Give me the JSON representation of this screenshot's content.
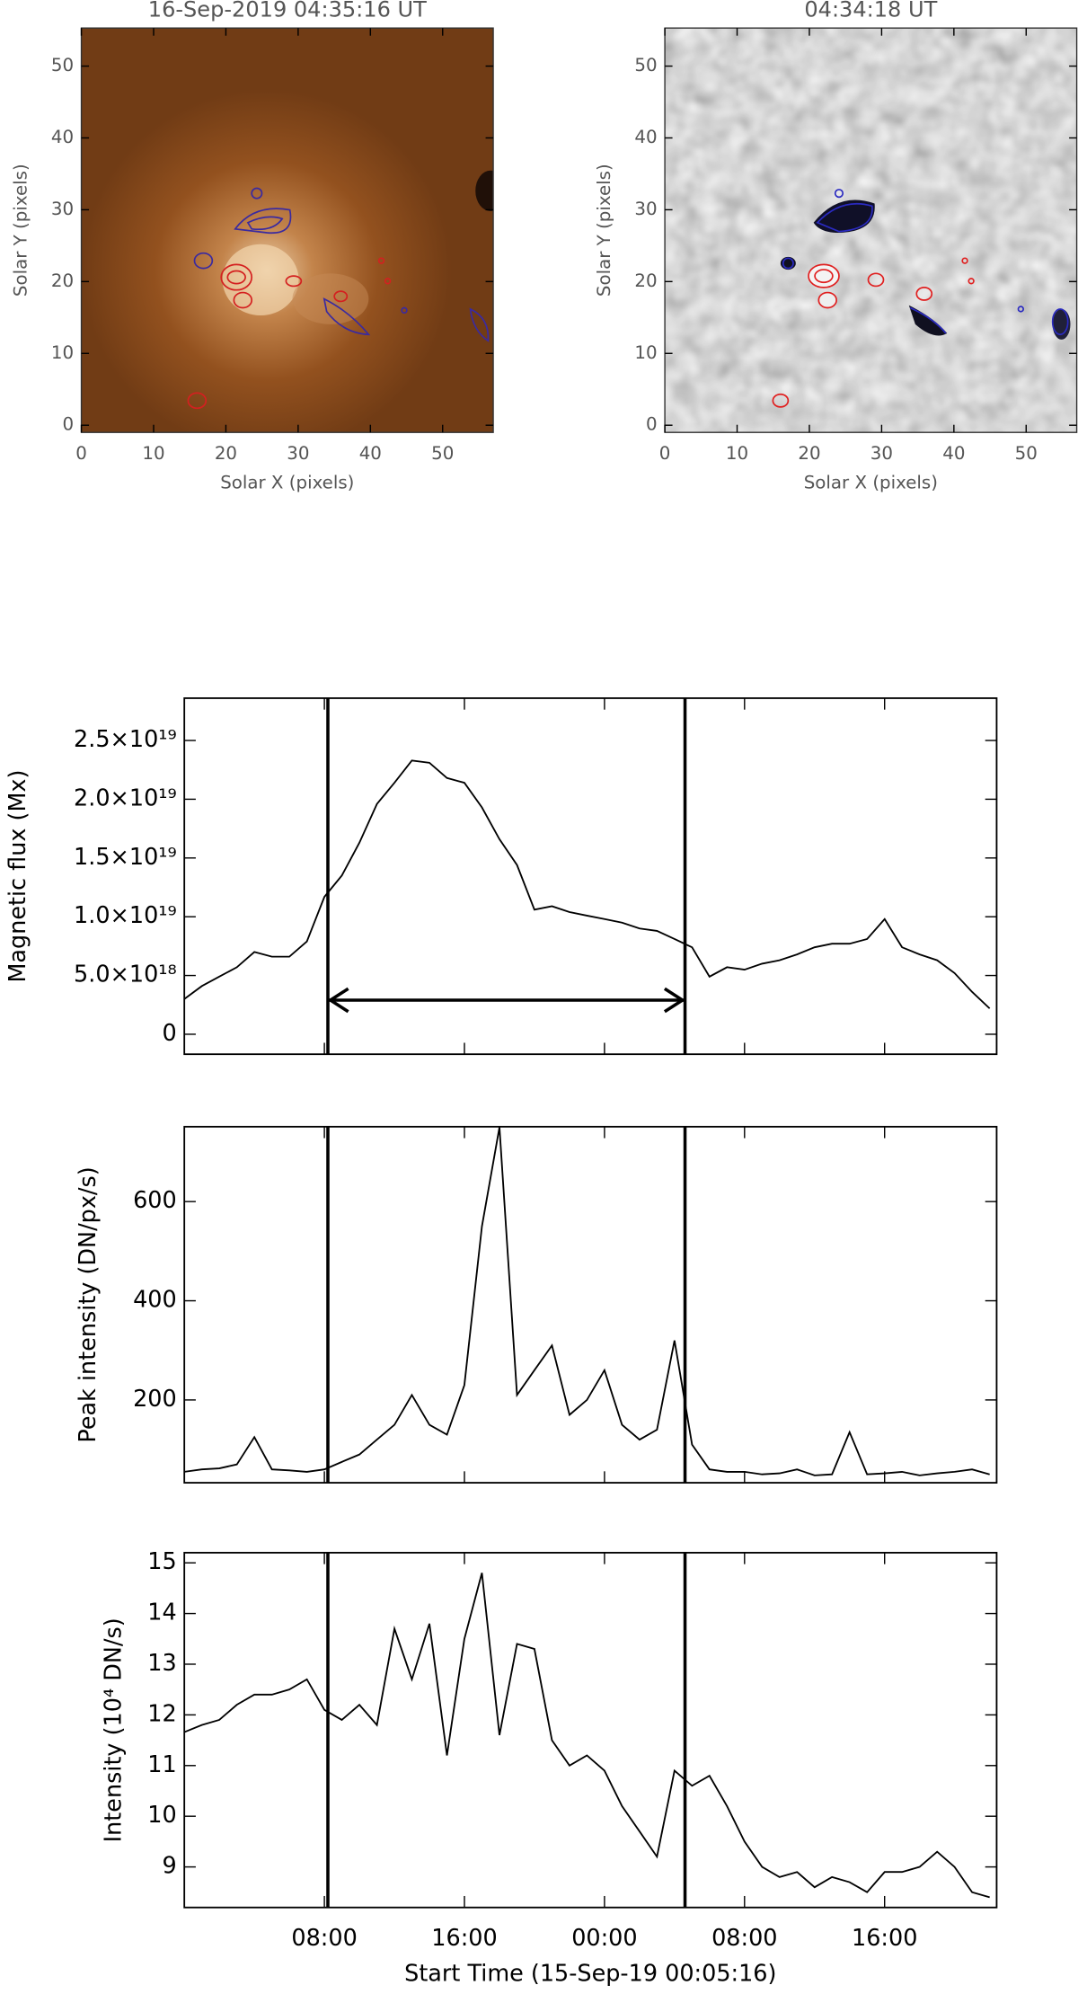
{
  "chart_data": [
    {
      "type": "image",
      "title": "16-Sep-2019 04:35:16 UT",
      "xlabel": "Solar X (pixels)",
      "ylabel": "Solar Y (pixels)",
      "xlim": [
        0,
        57
      ],
      "ylim": [
        -1,
        55.3
      ],
      "xticks": [
        0,
        10,
        20,
        30,
        40,
        50
      ],
      "yticks": [
        0,
        10,
        20,
        30,
        40,
        50
      ],
      "colormap": "brown"
    },
    {
      "type": "image",
      "title": "04:34:18 UT",
      "xlabel": "Solar X (pixels)",
      "ylabel": "Solar Y (pixels)",
      "xlim": [
        0,
        57
      ],
      "ylim": [
        -1,
        55.3
      ],
      "xticks": [
        0,
        10,
        20,
        30,
        40,
        50
      ],
      "yticks": [
        0,
        10,
        20,
        30,
        40,
        50
      ],
      "colormap": "gray"
    },
    {
      "type": "line",
      "ylabel": "Magnetic flux (Mx)",
      "color": "#000000",
      "x": [
        0,
        1,
        2,
        3,
        4,
        5,
        6,
        7,
        8,
        9,
        10,
        11,
        12,
        13,
        14,
        15,
        16,
        17,
        18,
        19,
        20,
        21,
        22,
        23,
        24,
        25,
        26,
        27,
        28,
        29,
        30,
        31,
        32,
        33,
        34,
        35,
        36,
        37,
        38,
        39,
        40,
        41,
        42,
        43,
        44,
        45,
        46
      ],
      "values": [
        3e+18,
        4.1e+18,
        4.9e+18,
        5.7e+18,
        7e+18,
        6.6e+18,
        6.6e+18,
        7.9e+18,
        1.17e+19,
        1.35e+19,
        1.63e+19,
        1.96e+19,
        2.14e+19,
        2.33e+19,
        2.31e+19,
        2.18e+19,
        2.14e+19,
        1.93e+19,
        1.66e+19,
        1.44e+19,
        1.06e+19,
        1.09e+19,
        1.04e+19,
        1.01e+19,
        9.8e+18,
        9.5e+18,
        9e+18,
        8.8e+18,
        8.1e+18,
        7.4e+18,
        4.9e+18,
        5.7e+18,
        5.5e+18,
        6e+18,
        6.3e+18,
        6.8e+18,
        7.4e+18,
        7.7e+18,
        7.7e+18,
        8.1e+18,
        9.8e+18,
        7.4e+18,
        6.8e+18,
        6.3e+18,
        5.2e+18,
        3.6e+18,
        2.2e+18
      ],
      "xlim": [
        0,
        46.4
      ],
      "ylim": [
        -1.7e+18,
        2.86e+19
      ],
      "yticks": [
        0,
        {
          "value": 5e+18,
          "label": "5.0×10¹⁸"
        },
        {
          "value": 1e+19,
          "label": "1.0×10¹⁹"
        },
        {
          "value": 1.5e+19,
          "label": "1.5×10¹⁹"
        },
        {
          "value": 2e+19,
          "label": "2.0×10¹⁹"
        },
        {
          "value": 2.5e+19,
          "label": "2.5×10¹⁹"
        }
      ],
      "vlines": [
        8.2,
        28.6
      ],
      "arrow": {
        "x": [
          8.2,
          28.6
        ],
        "y": 2.9e+18
      }
    },
    {
      "type": "line",
      "ylabel": "Peak intensity (DN/px/s)",
      "color": "#000000",
      "x": [
        0,
        1,
        2,
        3,
        4,
        5,
        6,
        7,
        8,
        9,
        10,
        11,
        12,
        13,
        14,
        15,
        16,
        17,
        18,
        19,
        20,
        21,
        22,
        23,
        24,
        25,
        26,
        27,
        28,
        29,
        30,
        31,
        32,
        33,
        34,
        35,
        36,
        37,
        38,
        39,
        40,
        41,
        42,
        43,
        44,
        45,
        46
      ],
      "values": [
        55,
        60,
        62,
        70,
        125,
        60,
        58,
        55,
        60,
        75,
        90,
        120,
        150,
        210,
        150,
        130,
        230,
        550,
        750,
        210,
        260,
        310,
        170,
        200,
        260,
        150,
        120,
        140,
        320,
        110,
        60,
        55,
        55,
        50,
        52,
        60,
        48,
        50,
        135,
        50,
        52,
        55,
        48,
        52,
        55,
        60,
        50
      ],
      "xlim": [
        0,
        46.4
      ],
      "ylim": [
        33,
        751
      ],
      "yticks": [
        200,
        400,
        600
      ],
      "vlines": [
        8.2,
        28.6
      ]
    },
    {
      "type": "line",
      "ylabel": "Intensity (10⁴ DN/s)",
      "xlabel": "Start Time (15-Sep-19 00:05:16)",
      "color": "#000000",
      "x": [
        0,
        1,
        2,
        3,
        4,
        5,
        6,
        7,
        8,
        9,
        10,
        11,
        12,
        13,
        14,
        15,
        16,
        17,
        18,
        19,
        20,
        21,
        22,
        23,
        24,
        25,
        26,
        27,
        28,
        29,
        30,
        31,
        32,
        33,
        34,
        35,
        36,
        37,
        38,
        39,
        40,
        41,
        42,
        43,
        44,
        45,
        46
      ],
      "values": [
        11.66,
        11.8,
        11.9,
        12.2,
        12.4,
        12.4,
        12.5,
        12.7,
        12.1,
        11.9,
        12.2,
        11.8,
        13.7,
        12.7,
        13.8,
        11.2,
        13.5,
        14.8,
        11.6,
        13.4,
        13.3,
        11.5,
        11.0,
        11.2,
        10.9,
        10.2,
        9.7,
        9.2,
        10.9,
        10.6,
        10.8,
        10.2,
        9.5,
        9.0,
        8.8,
        8.9,
        8.6,
        8.8,
        8.7,
        8.5,
        8.9,
        8.9,
        9.0,
        9.3,
        9.0,
        8.5,
        8.4
      ],
      "xlim": [
        0,
        46.4
      ],
      "ylim": [
        8.2,
        15.2
      ],
      "yticks": [
        9,
        10,
        11,
        12,
        13,
        14,
        15
      ],
      "xticks": [
        {
          "value": 8,
          "label": "08:00"
        },
        {
          "value": 16,
          "label": "16:00"
        },
        {
          "value": 24,
          "label": "00:00"
        },
        {
          "value": 32,
          "label": "08:00"
        },
        {
          "value": 40,
          "label": "16:00"
        }
      ],
      "vlines": [
        8.2,
        28.6
      ]
    }
  ]
}
